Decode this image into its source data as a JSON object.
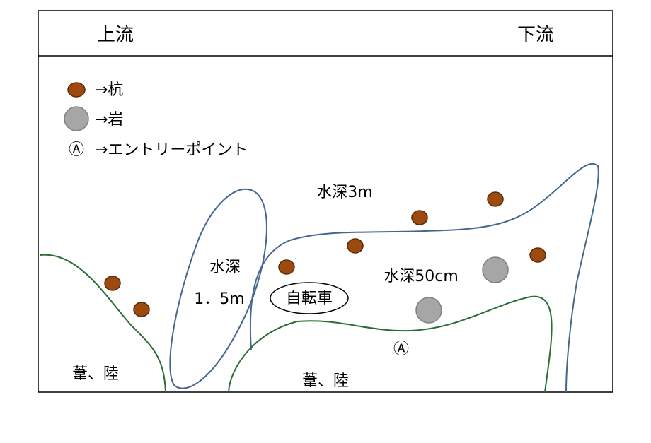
{
  "header": {
    "left": "上流",
    "right": "下流"
  },
  "legend": [
    {
      "label": "→杭"
    },
    {
      "label": "→岩"
    },
    {
      "symbol": "Ⓐ",
      "label": "→エントリーポイント"
    }
  ],
  "labels": {
    "deep": "水深3m",
    "pool_top": "水深",
    "pool_bottom": "1．5m",
    "bicycle": "自転車",
    "shallow": "水深50cm",
    "entry": "Ⓐ",
    "bank_left": "葦、陸",
    "bank_bottom": "葦、陸"
  }
}
